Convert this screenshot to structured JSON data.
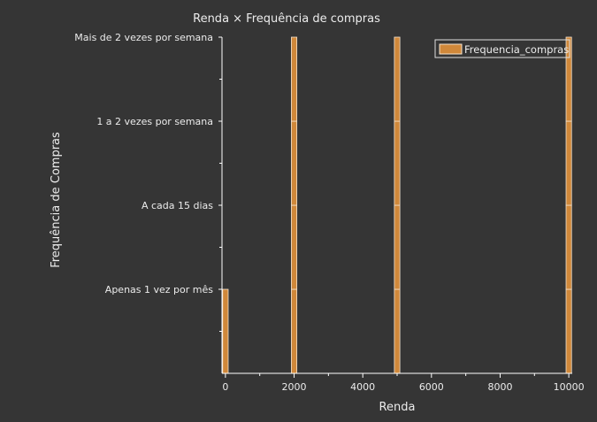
{
  "colors": {
    "background": "#353535",
    "bar_fill": "#d0883a",
    "bar_edge": "#f4e3cf",
    "axis": "#ffffff",
    "text": "#ececec"
  },
  "chart_data": {
    "type": "bar",
    "title": "Renda × Frequência de compras",
    "xlabel": "Renda",
    "ylabel": "Frequência de Compras",
    "xlim": [
      -100,
      10100
    ],
    "ylim": [
      0,
      4
    ],
    "x_ticks": [
      0,
      2000,
      4000,
      6000,
      8000,
      10000
    ],
    "y_categories": [
      "Apenas 1 vez por mês",
      "A cada 15 dias",
      "1 a 2 vezes por semana",
      "Mais de 2 vezes por semana"
    ],
    "y_tick_values": [
      1,
      2,
      3,
      4
    ],
    "series": [
      {
        "name": "Frequencia_compras",
        "x": [
          0,
          2000,
          5000,
          10000
        ],
        "values": [
          1,
          4,
          4,
          4
        ]
      }
    ],
    "bar_segments_units": 1,
    "bar_width_data_units": 160,
    "grid": false,
    "legend": "top-right"
  }
}
